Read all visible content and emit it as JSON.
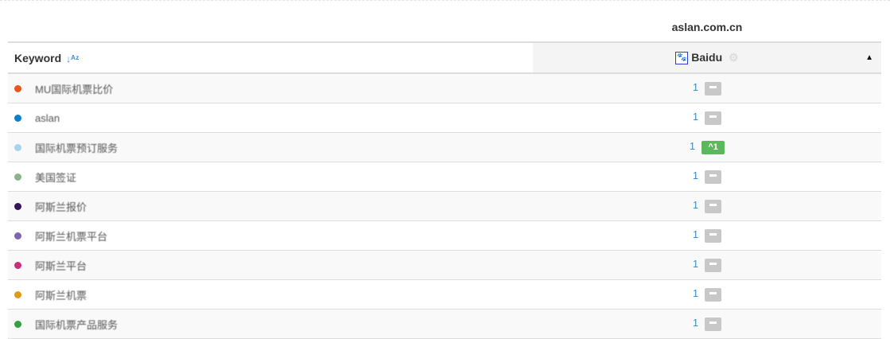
{
  "domain": "aslan.com.cn",
  "header": {
    "keyword_label": "Keyword",
    "sort_icon": "sort-alpha-down-icon",
    "engine_label": "Baidu",
    "engine_icon": "baidu-paw-icon",
    "settings_icon": "gear-icon",
    "collapse_icon": "caret-up-icon"
  },
  "colors": {
    "rank": "#3a8fd0",
    "badge_none": "#c8c8c8",
    "badge_up": "#5cb85c"
  },
  "rows": [
    {
      "keyword": "MU国际机票比价",
      "color": "#e8561c",
      "rank": "1",
      "change": "none",
      "change_label": ""
    },
    {
      "keyword": "aslan",
      "color": "#0f7fc8",
      "rank": "1",
      "change": "none",
      "change_label": ""
    },
    {
      "keyword": "国际机票预订服务",
      "color": "#a9d3ea",
      "rank": "1",
      "change": "up",
      "change_label": "^1"
    },
    {
      "keyword": "美国签证",
      "color": "#8cb38c",
      "rank": "1",
      "change": "none",
      "change_label": ""
    },
    {
      "keyword": "阿斯兰报价",
      "color": "#35155a",
      "rank": "1",
      "change": "none",
      "change_label": ""
    },
    {
      "keyword": "阿斯兰机票平台",
      "color": "#8066b0",
      "rank": "1",
      "change": "none",
      "change_label": ""
    },
    {
      "keyword": "阿斯兰平台",
      "color": "#c8307a",
      "rank": "1",
      "change": "none",
      "change_label": ""
    },
    {
      "keyword": "阿斯兰机票",
      "color": "#e09a1a",
      "rank": "1",
      "change": "none",
      "change_label": ""
    },
    {
      "keyword": "国际机票产品服务",
      "color": "#34a040",
      "rank": "1",
      "change": "none",
      "change_label": ""
    }
  ]
}
